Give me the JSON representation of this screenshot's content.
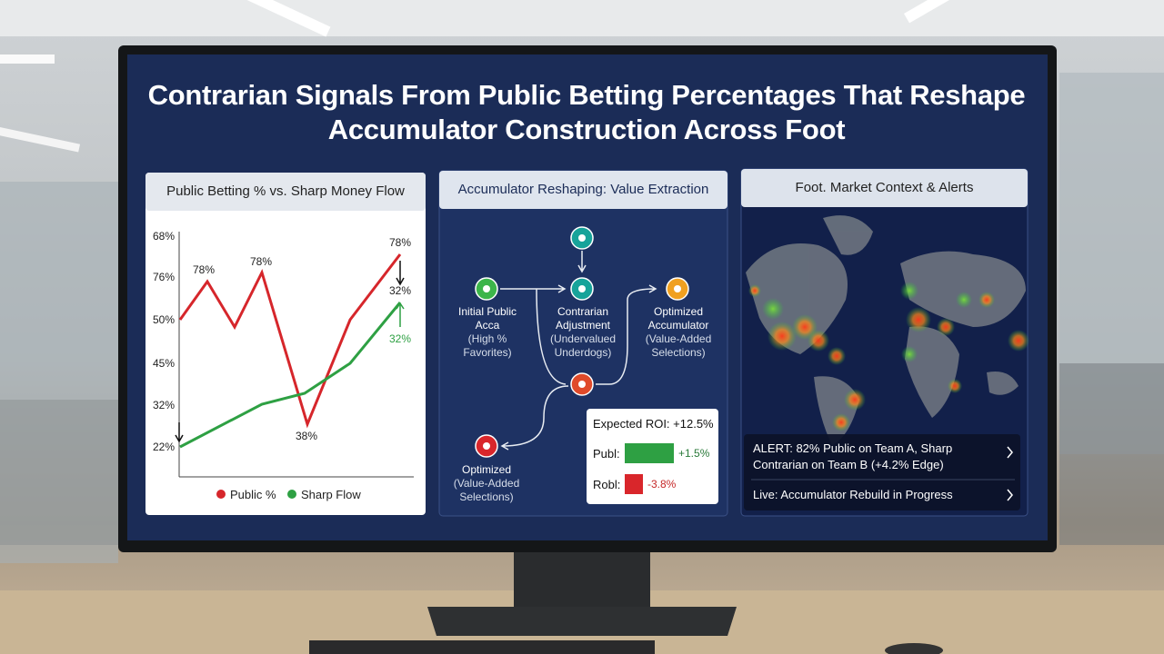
{
  "title": "Contrarian Signals From Public Betting Percentages That Reshape Accumulator Construction Across Foot",
  "line_panel": {
    "title": "Public Betting % vs. Sharp Money Flow",
    "y_labels": [
      "68%",
      "76%",
      "50%",
      "45%",
      "32%",
      "22%"
    ],
    "point_labels": [
      "78%",
      "78%",
      "38%",
      "78%",
      "32%",
      "32%"
    ],
    "legend": [
      "Public %",
      "Sharp Flow"
    ]
  },
  "flow_panel": {
    "title": "Accumulator Reshaping: Value Extraction",
    "nodes": [
      {
        "label": "Initial Public Acca",
        "sub": "(High % Favorites)"
      },
      {
        "label": "Contrarian Adjustment",
        "sub": "(Undervalued Underdogs)"
      },
      {
        "label": "Optimized Accumulator",
        "sub": "(Value-Added Selections)"
      },
      {
        "label": "Optimized",
        "sub": "(Value-Added Selections)"
      }
    ],
    "roi": {
      "title": "Expected ROI: +12.5%",
      "rows": [
        {
          "label": "Publ:",
          "value": "+1.5%"
        },
        {
          "label": "Robl:",
          "value": "-3.8%"
        }
      ]
    }
  },
  "map_panel": {
    "title": "Foot. Market Context & Alerts",
    "alerts": [
      "ALERT: 82% Public on Team A, Sharp Contrarian on Team B (+4.2% Edge)",
      "Live: Accumulator Rebuild in Progress"
    ]
  }
}
